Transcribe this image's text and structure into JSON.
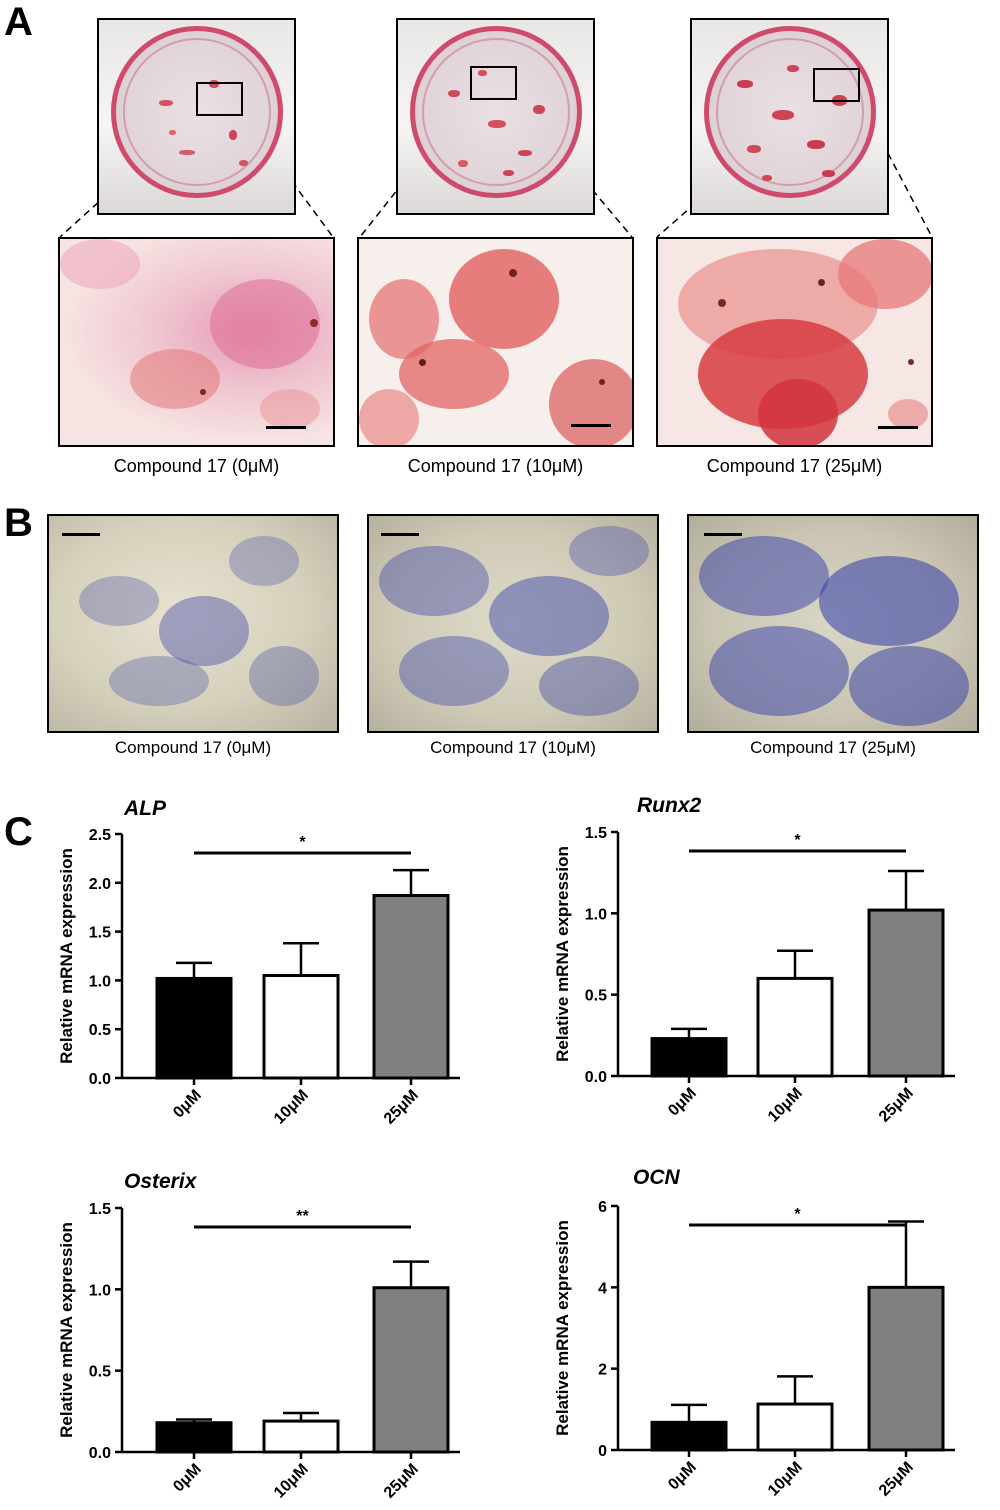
{
  "panels": {
    "a": {
      "letter": "A",
      "captions": [
        "Compound 17 (0μM)",
        "Compound 17 (10μM)",
        "Compound 17 (25μM)"
      ]
    },
    "b": {
      "letter": "B",
      "captions": [
        "Compound 17 (0μM)",
        "Compound 17 (10μM)",
        "Compound 17 (25μM)"
      ]
    },
    "c": {
      "letter": "C"
    }
  },
  "colors": {
    "bar_0uM": "#000000",
    "bar_10uM": "#ffffff",
    "bar_25uM": "#808080",
    "alizarin_red": "#d9464f",
    "alp_blue": "#4b55a8"
  },
  "chart_data": [
    {
      "type": "bar",
      "title": "ALP",
      "categories": [
        "0μM",
        "10μM",
        "25μM"
      ],
      "values": [
        1.02,
        1.05,
        1.87
      ],
      "errors": [
        0.16,
        0.33,
        0.26
      ],
      "ylabel": "Relative mRNA expression",
      "ylim": [
        0,
        2.5
      ],
      "yticks": [
        "0.0",
        "0.5",
        "1.0",
        "1.5",
        "2.0",
        "2.5"
      ],
      "significance": {
        "from": 0,
        "to": 2,
        "label": "*"
      }
    },
    {
      "type": "bar",
      "title": "Runx2",
      "categories": [
        "0μM",
        "10μM",
        "25μM"
      ],
      "values": [
        0.23,
        0.6,
        1.02
      ],
      "errors": [
        0.06,
        0.17,
        0.24
      ],
      "ylabel": "Relative mRNA expression",
      "ylim": [
        0,
        1.5
      ],
      "yticks": [
        "0.0",
        "0.5",
        "1.0",
        "1.5"
      ],
      "significance": {
        "from": 0,
        "to": 2,
        "label": "*"
      }
    },
    {
      "type": "bar",
      "title": "Osterix",
      "categories": [
        "0μM",
        "10μM",
        "25μM"
      ],
      "values": [
        0.18,
        0.19,
        1.01
      ],
      "errors": [
        0.02,
        0.05,
        0.16
      ],
      "ylabel": "Relative mRNA expression",
      "ylim": [
        0,
        1.5
      ],
      "yticks": [
        "0.0",
        "0.5",
        "1.0",
        "1.5"
      ],
      "significance": {
        "from": 0,
        "to": 2,
        "label": "**"
      }
    },
    {
      "type": "bar",
      "title": "OCN",
      "categories": [
        "0μM",
        "10μM",
        "25μM"
      ],
      "values": [
        0.68,
        1.13,
        4.0
      ],
      "errors": [
        0.43,
        0.68,
        1.62
      ],
      "ylabel": "Relative mRNA expression",
      "ylim": [
        0,
        6
      ],
      "yticks": [
        "0",
        "2",
        "4",
        "6"
      ],
      "significance": {
        "from": 0,
        "to": 2,
        "label": "*"
      }
    }
  ]
}
